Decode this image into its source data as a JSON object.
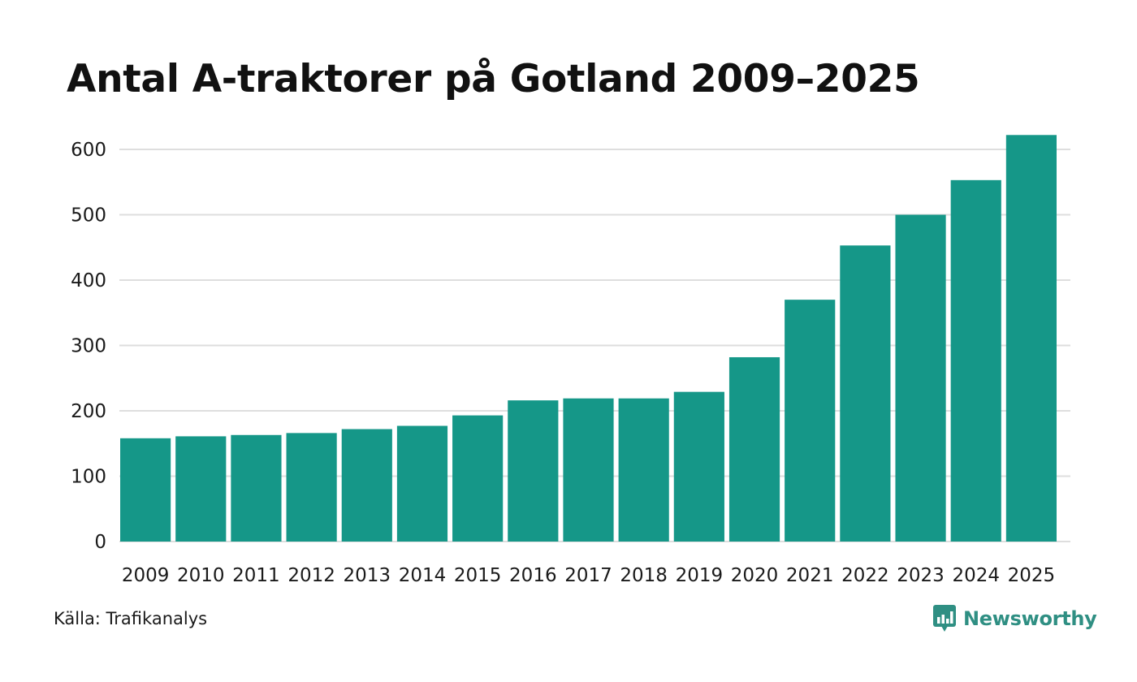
{
  "colors": {
    "bar": "#159788",
    "grid": "#dedede",
    "brand": "#2f8f83"
  },
  "chart_data": {
    "type": "bar",
    "title": "Antal A-traktorer på Gotland 2009–2025",
    "categories": [
      "2009",
      "2010",
      "2011",
      "2012",
      "2013",
      "2014",
      "2015",
      "2016",
      "2017",
      "2018",
      "2019",
      "2020",
      "2021",
      "2022",
      "2023",
      "2024",
      "2025"
    ],
    "values": [
      158,
      161,
      163,
      166,
      172,
      177,
      193,
      216,
      219,
      219,
      229,
      282,
      370,
      453,
      500,
      553,
      622
    ],
    "ylim": [
      0,
      600
    ],
    "yticks": [
      0,
      100,
      200,
      300,
      400,
      500,
      600
    ],
    "xlabel": "",
    "ylabel": "",
    "grid": true
  },
  "footer": {
    "source": "Källa: Trafikanalys",
    "brand": "Newsworthy"
  }
}
